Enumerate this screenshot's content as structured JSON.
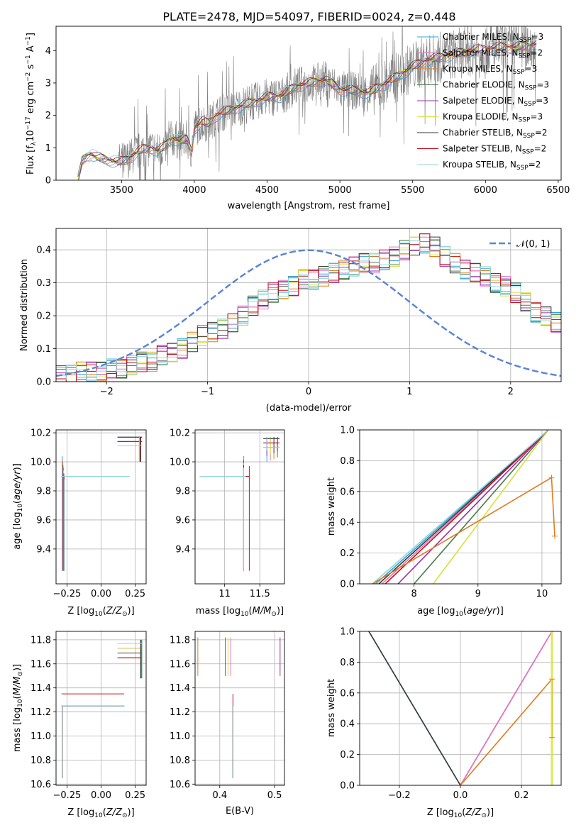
{
  "figure": {
    "title": "PLATE=2478, MJD=54097, FIBERID=0024, z=0.448"
  },
  "colors": {
    "data": "#808080",
    "chabrier_miles": "#2ca4d8",
    "salpeter_miles": "#e377c2",
    "kroupa_miles": "#e07b20",
    "chabrier_elodie": "#4b7b4b",
    "salpeter_elodie": "#9a2fb0",
    "kroupa_elodie": "#d6e23a",
    "chabrier_stelib": "#3a3a3a",
    "salpeter_stelib": "#c0121a",
    "kroupa_stelib": "#8fd6dc",
    "normal": "#5b86d6",
    "grid": "#b0b0b0"
  },
  "chart_data": [
    {
      "id": "spectrum",
      "type": "line",
      "xlabel": "wavelength [Angstrom, rest frame]",
      "ylabel": "Flux [f",
      "xlim": [
        3050,
        6520
      ],
      "ylim": [
        0,
        4.75
      ],
      "xticks": [
        3500,
        4000,
        4500,
        5000,
        5500,
        6000,
        6500
      ],
      "yticks": [
        0,
        1,
        2,
        3,
        4
      ],
      "legend": "top-right",
      "series": [
        {
          "name": "Chabrier MILES, N",
          "sub": "SSP",
          "n": "=3"
        },
        {
          "name": "Salpeter MILES, N",
          "sub": "SSP",
          "n": "=2"
        },
        {
          "name": "Kroupa MILES, N",
          "sub": "SSP",
          "n": "=3"
        },
        {
          "name": "Chabrier ELODIE, N",
          "sub": "SSP",
          "n": "=3"
        },
        {
          "name": "Salpeter ELODIE, N",
          "sub": "SSP",
          "n": "=3"
        },
        {
          "name": "Kroupa ELODIE, N",
          "sub": "SSP",
          "n": "=3"
        },
        {
          "name": "Chabrier STELIB, N",
          "sub": "SSP",
          "n": "=2"
        },
        {
          "name": "Salpeter STELIB, N",
          "sub": "SSP",
          "n": "=2"
        },
        {
          "name": "Kroupa STELIB, N",
          "sub": "SSP",
          "n": "=2"
        }
      ],
      "model_curve": {
        "x": [
          3200,
          3230,
          3260,
          3290,
          3330,
          3380,
          3430,
          3480,
          3520,
          3560,
          3600,
          3650,
          3700,
          3750,
          3800,
          3850,
          3900,
          3950,
          3980,
          4000,
          4050,
          4100,
          4150,
          4200,
          4300,
          4400,
          4500,
          4600,
          4700,
          4800,
          4900,
          5000,
          5100,
          5200,
          5300,
          5400,
          5500,
          5600,
          5700,
          5800,
          5900,
          6000,
          6100,
          6200,
          6300,
          6350
        ],
        "y": [
          0,
          0.6,
          0.75,
          0.8,
          0.7,
          0.65,
          0.6,
          0.55,
          0.6,
          0.7,
          0.85,
          0.95,
          1.0,
          0.9,
          1.05,
          1.3,
          1.2,
          1.25,
          0.9,
          1.6,
          1.8,
          1.75,
          2.0,
          2.1,
          2.25,
          2.4,
          2.55,
          2.6,
          2.9,
          3.0,
          3.1,
          2.8,
          2.75,
          2.7,
          2.95,
          3.2,
          3.5,
          3.7,
          3.8,
          3.9,
          4.0,
          4.05,
          4.1,
          4.1,
          4.15,
          4.2
        ]
      }
    },
    {
      "id": "residuals",
      "type": "histogram",
      "xlabel": "(data-model)/error",
      "ylabel": "Normed distribution",
      "xlim": [
        -2.5,
        2.5
      ],
      "ylim": [
        0,
        0.465
      ],
      "xticks": [
        -2,
        -1,
        0,
        1,
        2
      ],
      "yticks": [
        0.0,
        0.1,
        0.2,
        0.3,
        0.4
      ],
      "legend": "top-right",
      "normal_label": "𝒩(0, 1)",
      "bin_width": 0.1,
      "hist": [
        0.02,
        0.02,
        0.03,
        0.03,
        0.03,
        0.04,
        0.04,
        0.05,
        0.06,
        0.06,
        0.08,
        0.09,
        0.1,
        0.12,
        0.14,
        0.15,
        0.16,
        0.18,
        0.2,
        0.23,
        0.25,
        0.27,
        0.28,
        0.29,
        0.31,
        0.31,
        0.32,
        0.33,
        0.34,
        0.35,
        0.36,
        0.36,
        0.37,
        0.38,
        0.4,
        0.41,
        0.42,
        0.41,
        0.38,
        0.36,
        0.34,
        0.33,
        0.32,
        0.3,
        0.29,
        0.27,
        0.24,
        0.21,
        0.2,
        0.18
      ]
    },
    {
      "id": "age-vs-z",
      "type": "scatter",
      "xlabel": "Z [log",
      "ylabel": "age  [log",
      "xlim": [
        -0.33,
        0.33
      ],
      "ylim": [
        9.16,
        10.22
      ],
      "xticks": [
        -0.25,
        0.0,
        0.25
      ],
      "xticklabels": [
        "−0.25",
        "0.00",
        "0.25"
      ],
      "yticks": [
        9.4,
        9.6,
        9.8,
        10.0,
        10.2
      ]
    },
    {
      "id": "age-vs-mass",
      "type": "scatter",
      "xlabel": "mass [log",
      "ylabel": "",
      "xlim": [
        10.58,
        11.85
      ],
      "ylim": [
        9.16,
        10.22
      ],
      "xticks": [
        11.0,
        11.5
      ],
      "yticks": [
        9.4,
        9.6,
        9.8,
        10.0,
        10.2
      ]
    },
    {
      "id": "mass-weight-vs-age",
      "type": "line",
      "xlabel": "age  [log",
      "ylabel": "mass weight",
      "xlim": [
        7.15,
        10.3
      ],
      "ylim": [
        0,
        1
      ],
      "xticks": [
        8,
        9,
        10
      ],
      "yticks": [
        0.0,
        0.2,
        0.4,
        0.6,
        0.8,
        1.0
      ]
    },
    {
      "id": "mass-vs-z",
      "type": "scatter",
      "xlabel": "Z [log",
      "ylabel": "mass [log",
      "xlim": [
        -0.33,
        0.33
      ],
      "ylim": [
        10.59,
        11.87
      ],
      "xticks": [
        -0.25,
        0.0,
        0.25
      ],
      "xticklabels": [
        "−0.25",
        "0.00",
        "0.25"
      ],
      "yticks": [
        10.6,
        10.8,
        11.0,
        11.2,
        11.4,
        11.6,
        11.8
      ]
    },
    {
      "id": "mass-vs-ebv",
      "type": "scatter",
      "xlabel": "E(B-V)",
      "ylabel": "",
      "xlim": [
        0.355,
        0.518
      ],
      "ylim": [
        10.59,
        11.87
      ],
      "xticks": [
        0.4,
        0.5
      ],
      "yticks": [
        10.6,
        10.8,
        11.0,
        11.2,
        11.4,
        11.6,
        11.8
      ]
    },
    {
      "id": "mass-weight-vs-z",
      "type": "line",
      "xlabel": "Z [log",
      "ylabel": "mass weight",
      "xlim": [
        -0.33,
        0.33
      ],
      "ylim": [
        0,
        1
      ],
      "xticks": [
        -0.2,
        0.0,
        0.2
      ],
      "xticklabels": [
        "−0.2",
        "0.0",
        "0.2"
      ],
      "yticks": [
        0.0,
        0.2,
        0.4,
        0.6,
        0.8,
        1.0
      ]
    }
  ]
}
